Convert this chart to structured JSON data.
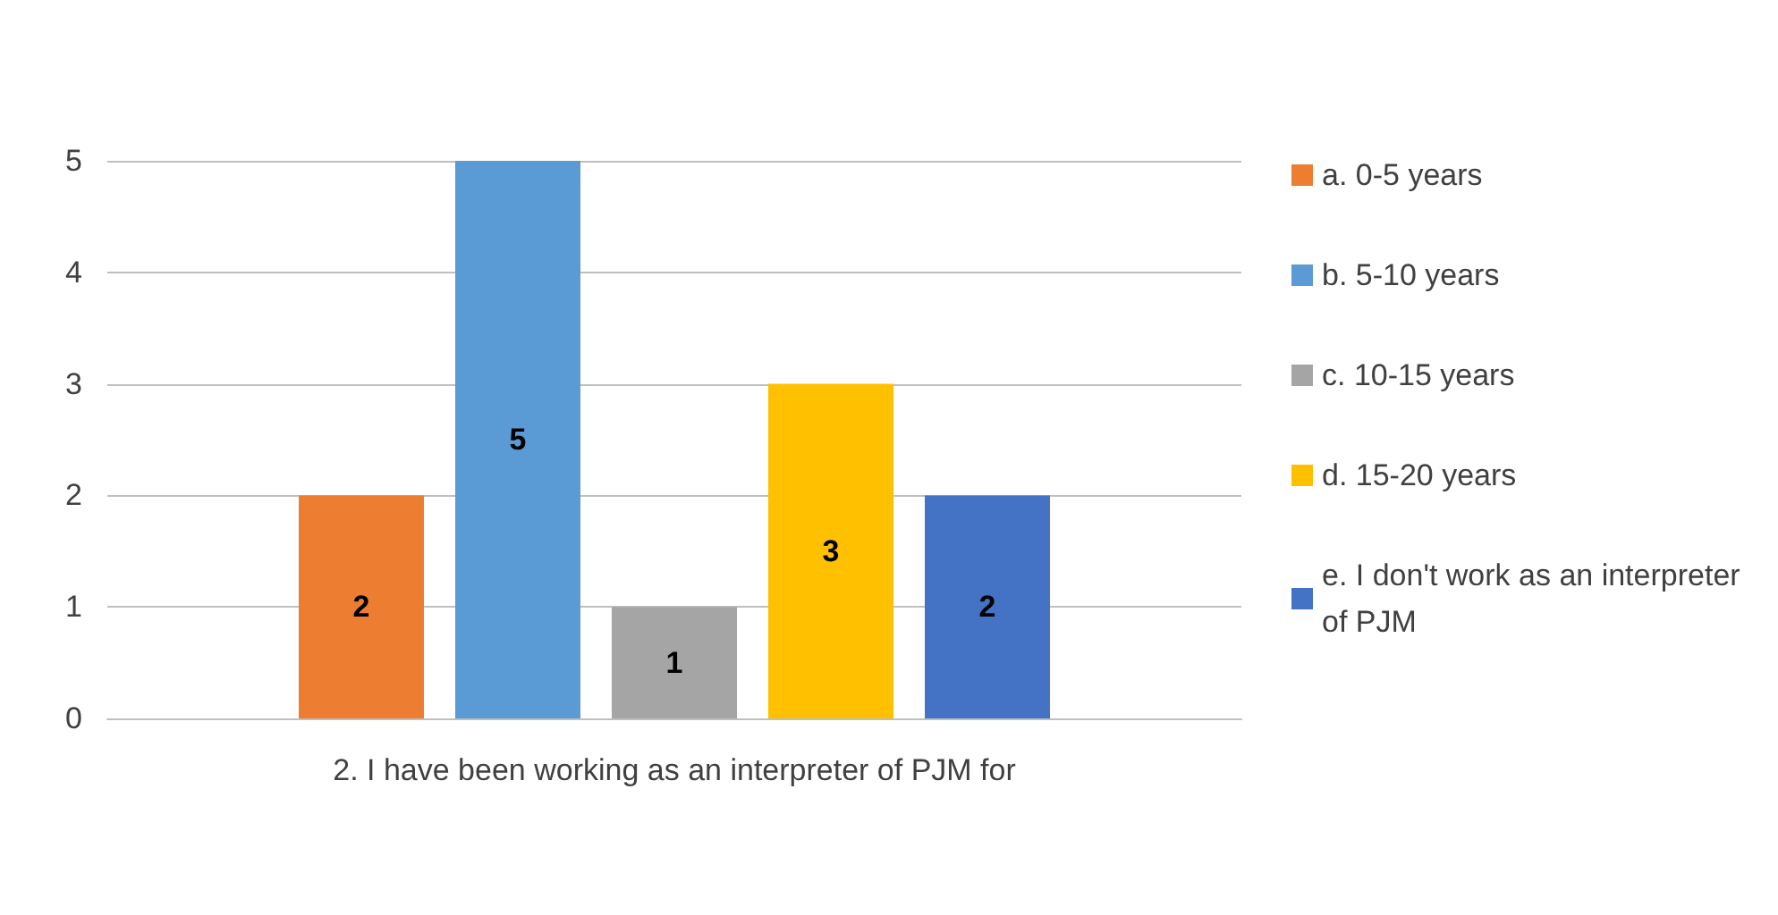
{
  "chart_data": {
    "type": "bar",
    "categories": [
      "2. I have been working as an interpreter of PJM for"
    ],
    "series": [
      {
        "name": "a. 0-5 years",
        "color": "#ed7d31",
        "values": [
          2
        ]
      },
      {
        "name": "b. 5-10 years",
        "color": "#5b9bd5",
        "values": [
          5
        ]
      },
      {
        "name": "c. 10-15 years",
        "color": "#a5a5a5",
        "values": [
          1
        ]
      },
      {
        "name": "d. 15-20 years",
        "color": "#ffc000",
        "values": [
          3
        ]
      },
      {
        "name": "e. I don't work as an interpreter of PJM",
        "color": "#4472c4",
        "values": [
          2
        ]
      }
    ],
    "ylim": [
      0,
      5
    ],
    "yticks": [
      0,
      1,
      2,
      3,
      4,
      5
    ],
    "grid": "y",
    "legend": "right",
    "data_labels": true
  }
}
